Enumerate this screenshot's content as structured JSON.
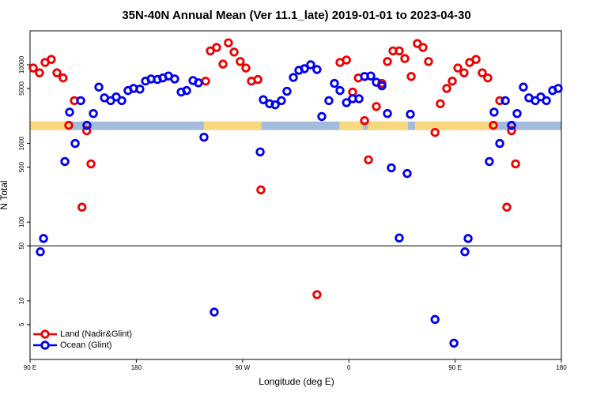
{
  "chart_data": {
    "type": "scatter",
    "title": "35N-40N Annual Mean (Ver 11.1_late)   2019-01-01 to 2023-04-30",
    "x_label": "Longitude (deg E)",
    "y_label": "N Total",
    "log_y": true,
    "xlim": [
      90,
      540
    ],
    "ylim": [
      1.8,
      27000
    ],
    "xticks": [
      {
        "value": 90,
        "label": "90 E"
      },
      180,
      {
        "value": 270,
        "label": "90 W"
      },
      {
        "value": 360,
        "label": "0"
      },
      {
        "value": 450,
        "label": "90 E"
      },
      {
        "value": 540,
        "label": "180"
      }
    ],
    "yticks": [
      5,
      10,
      50,
      100,
      500,
      1000,
      5000,
      10000
    ],
    "hline": 50,
    "legend": "lower left",
    "mask_band": {
      "ylim": [
        1480,
        1900
      ],
      "ocean_color": "#a3bbdc",
      "land_color": "#f9d77e",
      "land_spans": [
        [
          90,
          124
        ],
        [
          237,
          286
        ],
        [
          352,
          372
        ],
        [
          376,
          410
        ],
        [
          416,
          486
        ]
      ]
    },
    "series": [
      {
        "name": "Land (Nadir&Glint)",
        "color": "#ee0000",
        "x": [
          92.7,
          98,
          102.7,
          108,
          112.8,
          118,
          122.8,
          127.5,
          134,
          138,
          141.6,
          238.7,
          242.7,
          248,
          253.4,
          258,
          262.8,
          268,
          272.8,
          277.5,
          283,
          285.5,
          333,
          352.5,
          358,
          363.2,
          368,
          373.3,
          376.6,
          383.3,
          388,
          392.7,
          397.4,
          402.7,
          407.4,
          412.8,
          418,
          422.8,
          427.5,
          433,
          437.5,
          442.9,
          447.6,
          452.3,
          457.6,
          462.3,
          467.7,
          473,
          477.7,
          482.4,
          487.8,
          493.8,
          497.8,
          501.2
        ],
        "values": [
          9100,
          7900,
          10700,
          11700,
          7900,
          6800,
          1700,
          3500,
          155,
          1450,
          550,
          6200,
          15000,
          16600,
          10200,
          19000,
          14500,
          11000,
          9100,
          6200,
          6500,
          257,
          12,
          10700,
          11500,
          4500,
          6800,
          1950,
          620,
          2950,
          5800,
          11000,
          15000,
          15000,
          12000,
          7100,
          18600,
          16600,
          11000,
          1380,
          3200,
          5000,
          6200,
          9100,
          7900,
          10700,
          11700,
          7900,
          6800,
          1700,
          3500,
          155,
          1450,
          550
        ]
      },
      {
        "name": "Ocean (Glint)",
        "color": "#0000ee",
        "x": [
          98.7,
          101.4,
          119.5,
          123.5,
          128.2,
          132.9,
          138.2,
          143.6,
          148.3,
          153,
          158.3,
          163,
          167.7,
          173,
          177.7,
          183,
          187.8,
          192.5,
          197.8,
          202.5,
          207.2,
          212.5,
          218,
          222.6,
          228,
          232.6,
          237.3,
          246,
          284.9,
          287.5,
          292.9,
          297.6,
          302.9,
          307.6,
          313,
          317.7,
          322.4,
          327.7,
          333,
          337.1,
          343.1,
          347.8,
          352.5,
          358,
          363.2,
          368.6,
          373.3,
          378.6,
          383.3,
          388,
          392.7,
          396,
          402.7,
          409.4,
          412.1,
          433,
          449,
          458.3,
          461,
          479,
          483,
          487.8,
          492.5,
          497.8,
          502.5,
          507.8,
          512.5,
          517.9,
          522.6,
          527.3,
          532.6,
          537.3
        ],
        "values": [
          42,
          62,
          590,
          2500,
          1000,
          3500,
          1700,
          2400,
          5200,
          3800,
          3500,
          3900,
          3500,
          4700,
          5000,
          4900,
          6200,
          6600,
          6500,
          6800,
          7200,
          6600,
          4500,
          4700,
          6300,
          5900,
          1200,
          7.2,
          780,
          3600,
          3200,
          3100,
          3500,
          4600,
          6900,
          8500,
          8900,
          10000,
          8700,
          2200,
          3500,
          5800,
          4700,
          3300,
          3700,
          3700,
          7100,
          7200,
          6000,
          5400,
          2400,
          490,
          63,
          415,
          2350,
          5.8,
          2.9,
          42,
          62,
          590,
          2500,
          1000,
          3500,
          1700,
          2400,
          5200,
          3800,
          3500,
          3900,
          3500,
          4700,
          5000
        ]
      }
    ]
  }
}
